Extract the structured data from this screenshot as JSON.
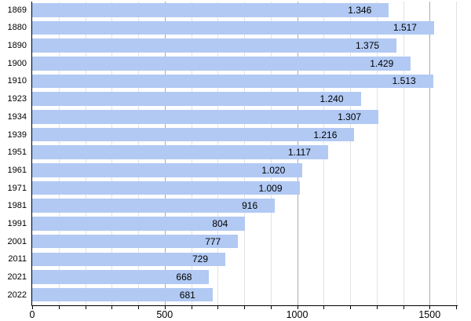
{
  "chart_data": {
    "type": "bar",
    "orientation": "horizontal",
    "title": "",
    "xlabel": "",
    "ylabel": "",
    "categories": [
      "1869",
      "1880",
      "1890",
      "1900",
      "1910",
      "1923",
      "1934",
      "1939",
      "1951",
      "1961",
      "1971",
      "1981",
      "1991",
      "2001",
      "2011",
      "2021",
      "2022"
    ],
    "values": [
      1346,
      1517,
      1375,
      1429,
      1513,
      1240,
      1307,
      1216,
      1117,
      1020,
      1009,
      916,
      804,
      777,
      729,
      668,
      681
    ],
    "value_labels": [
      "1.346",
      "1.517",
      "1.375",
      "1.429",
      "1.513",
      "1.240",
      "1.307",
      "1.216",
      "1.117",
      "1.020",
      "1.009",
      "916",
      "804",
      "777",
      "729",
      "668",
      "681"
    ],
    "xlim": [
      0,
      1600
    ],
    "x_major_ticks": [
      0,
      500,
      1000,
      1500
    ],
    "x_major_tick_labels": [
      "0",
      "500",
      "1000",
      "1500"
    ],
    "x_minor_tick_step": 100,
    "grid": "vertical",
    "legend": "none",
    "colors": {
      "bar_fill": "#b1c9f3",
      "minor_grid": "#e2e2e2",
      "major_grid": "#ababab",
      "axis": "#000000",
      "text": "#000000"
    }
  }
}
